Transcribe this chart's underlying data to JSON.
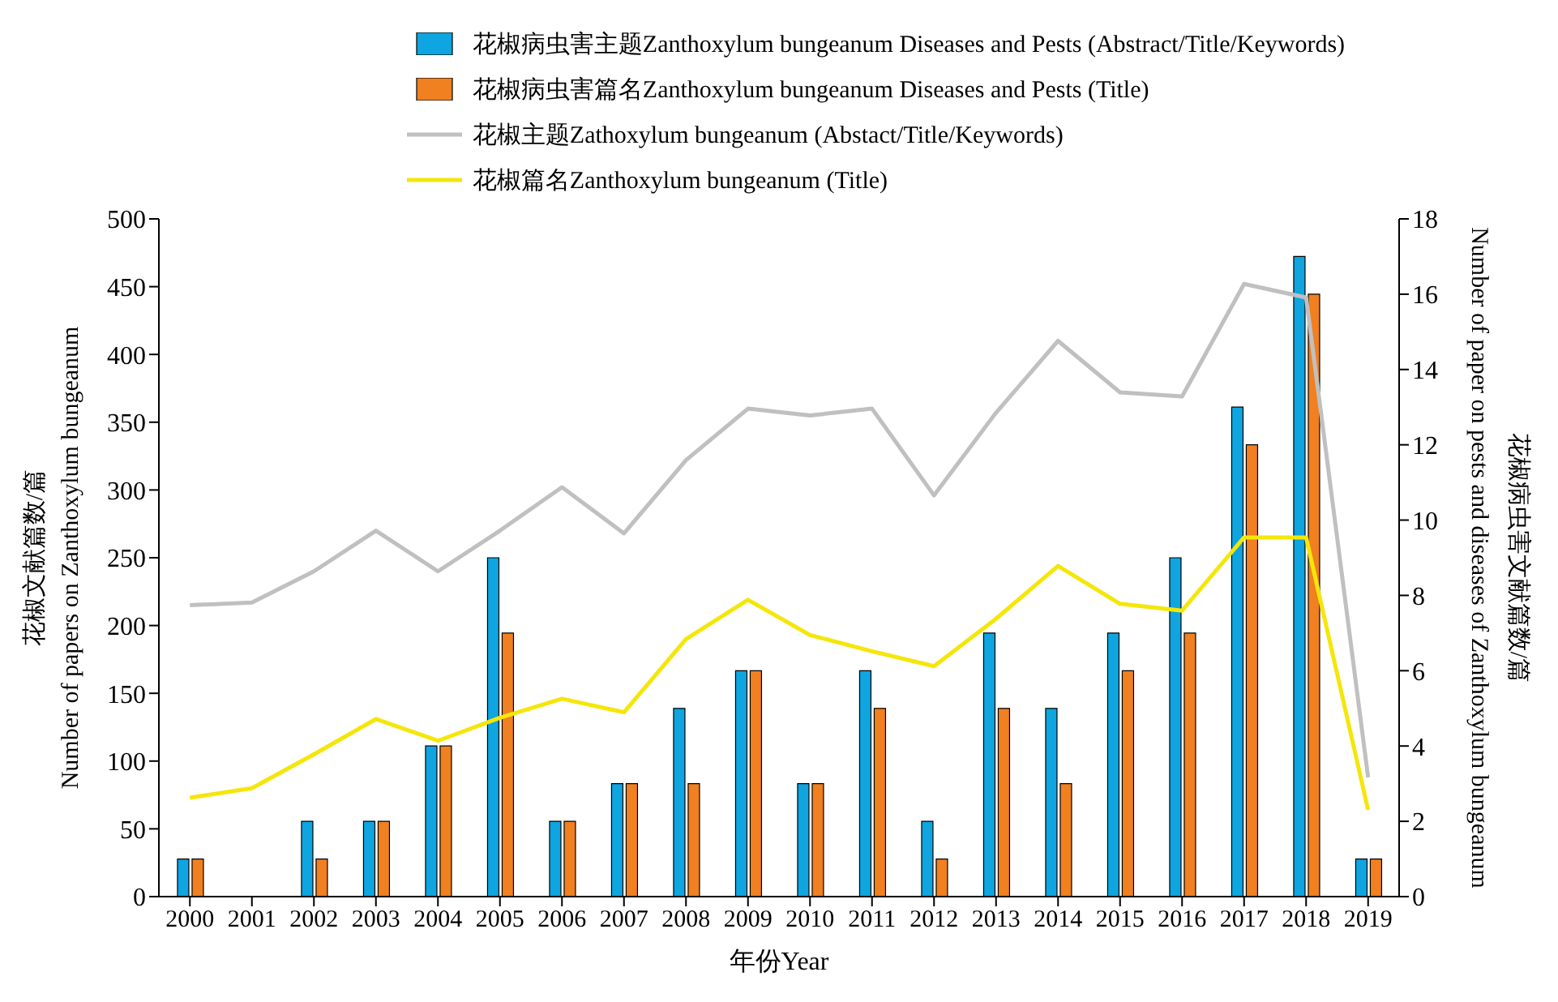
{
  "chart_data": {
    "type": "bar",
    "xlabel": "年份Year",
    "ylabel": "花椒文献篇数/篇\nNumber of papers on Zanthoxylum bungeanum",
    "y2label": "花椒病虫害文献篇数/篇\nNumber of paper on pests and diseases of Zanthoxylum bungeanum",
    "categories": [
      "2000",
      "2001",
      "2002",
      "2003",
      "2004",
      "2005",
      "2006",
      "2007",
      "2008",
      "2009",
      "2010",
      "2011",
      "2012",
      "2013",
      "2014",
      "2015",
      "2016",
      "2017",
      "2018",
      "2019"
    ],
    "series": [
      {
        "name": "花椒病虫害主题Zanthoxylum bungeanum Diseases and Pests (Abstract/Title/Keywords)",
        "axis": "y2",
        "color": "#0ea5e0",
        "values": [
          1,
          0,
          2,
          2,
          4,
          9,
          2,
          3,
          5,
          6,
          3,
          6,
          2,
          7,
          5,
          7,
          9,
          13,
          17,
          1
        ]
      },
      {
        "name": "花椒病虫害篇名Zanthoxylum bungeanum Diseases and Pests (Title)",
        "axis": "y2",
        "color": "#f08020",
        "values": [
          1,
          0,
          1,
          2,
          4,
          7,
          2,
          3,
          3,
          6,
          3,
          5,
          1,
          5,
          3,
          6,
          7,
          12,
          16,
          1
        ]
      },
      {
        "name": "花椒主题Zathoxylum bungeanum (Abstact/Title/Keywords)",
        "type": "line",
        "color": "#c0c0c0",
        "values": [
          215,
          217,
          240,
          270,
          240,
          270,
          302,
          268,
          322,
          360,
          355,
          360,
          296,
          357,
          410,
          372,
          369,
          452,
          442,
          88
        ]
      },
      {
        "name": "花椒篇名Zanthoxylum bungeanum (Title)",
        "type": "line",
        "color": "#f5e60a",
        "values": [
          73,
          80,
          105,
          131,
          115,
          132,
          146,
          136,
          190,
          219,
          193,
          181,
          170,
          205,
          244,
          216,
          211,
          265,
          265,
          64
        ]
      }
    ],
    "ylim": [
      0,
      500
    ],
    "yticks": [
      0,
      50,
      100,
      150,
      200,
      250,
      300,
      350,
      400,
      450,
      500
    ],
    "y2lim": [
      0,
      18
    ],
    "y2ticks": [
      0,
      2,
      4,
      6,
      8,
      10,
      12,
      14,
      16,
      18
    ],
    "grid": false,
    "legend": "top",
    "marker": "none"
  }
}
